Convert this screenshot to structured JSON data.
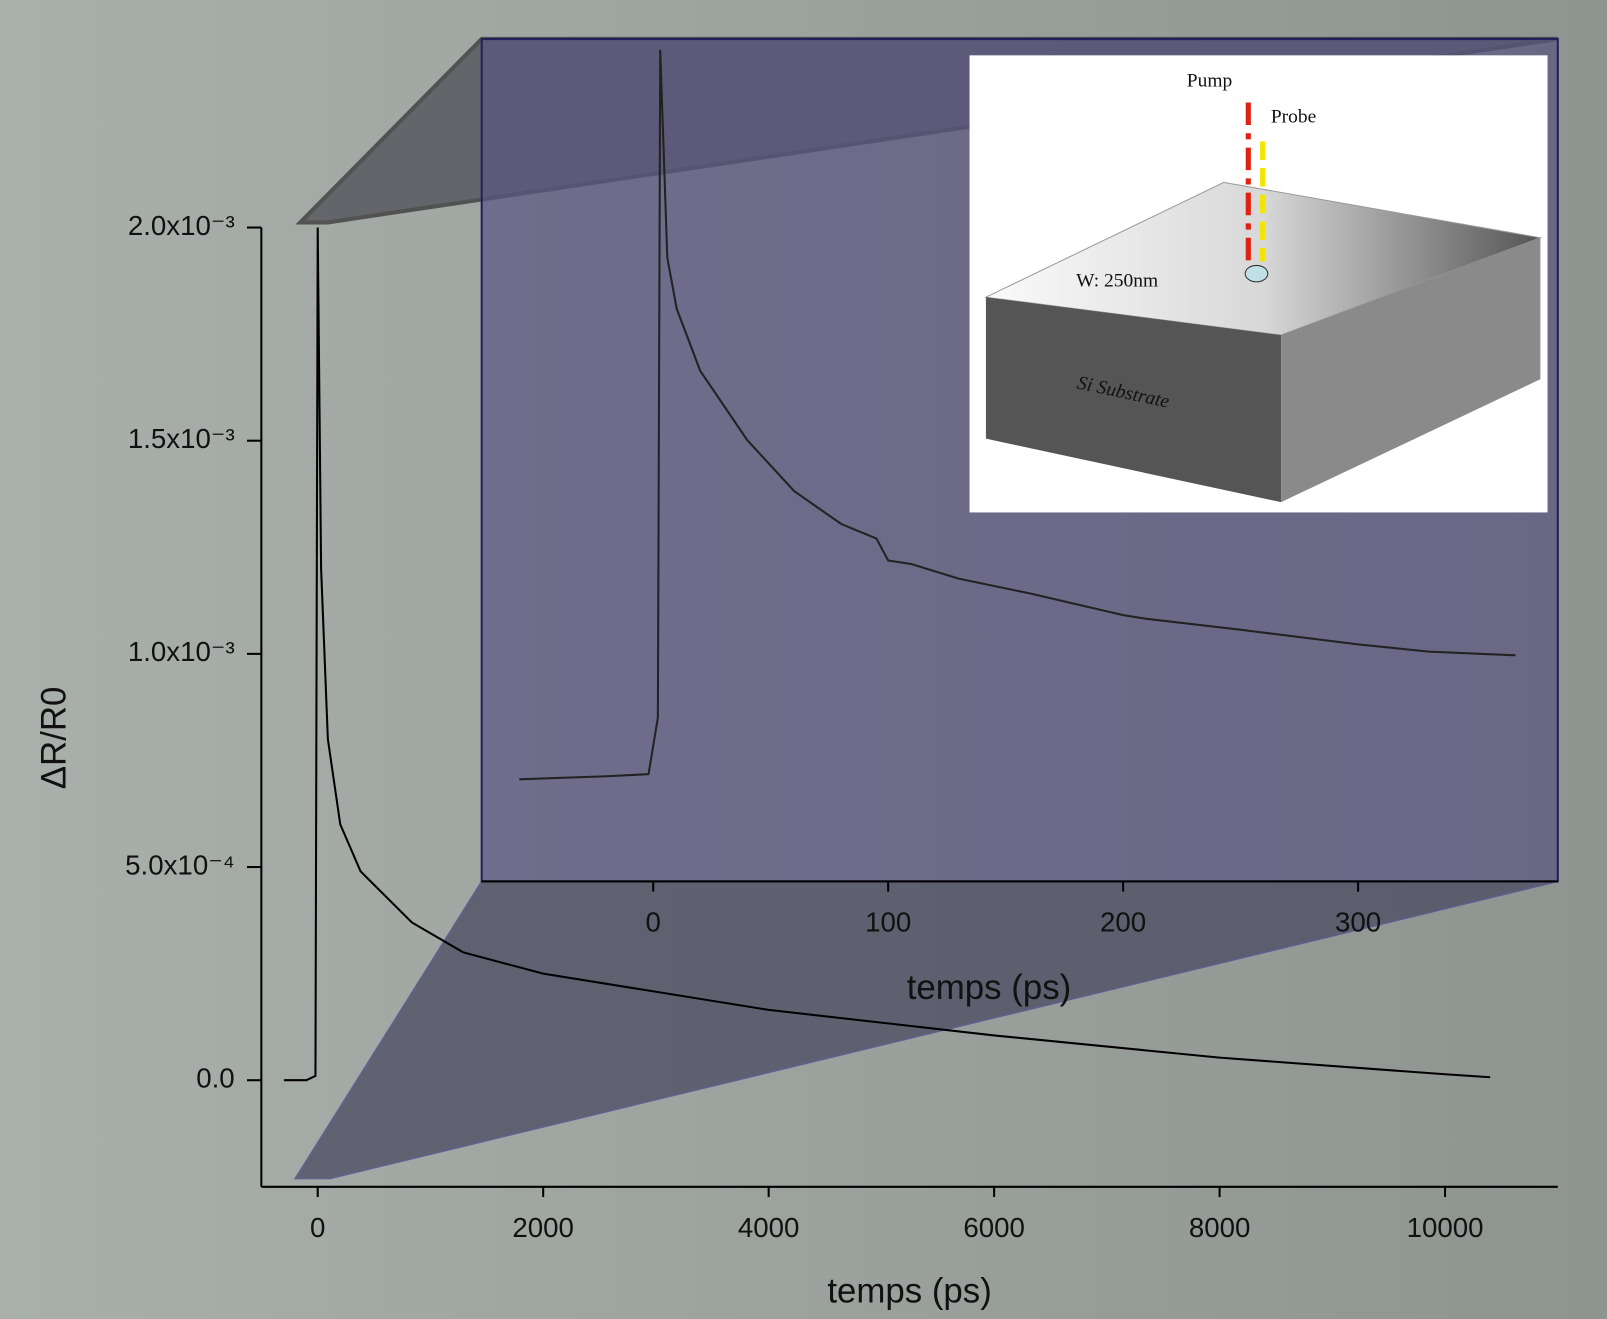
{
  "chart_data": [
    {
      "type": "line",
      "xlabel": "temps (ps)",
      "ylabel": "ΔR/R0",
      "xlim": [
        -500,
        11000
      ],
      "ylim": [
        -0.00025,
        0.002
      ],
      "xticks": [
        0,
        2000,
        4000,
        6000,
        8000,
        10000
      ],
      "yticks": [
        {
          "value": 0,
          "label": "0.0"
        },
        {
          "value": 0.0005,
          "label": "5.0x10⁻⁴"
        },
        {
          "value": 0.001,
          "label": "1.0x10⁻³"
        },
        {
          "value": 0.0015,
          "label": "1.5x10⁻³"
        },
        {
          "value": 0.002,
          "label": "2.0x10⁻³"
        }
      ],
      "series": [
        {
          "color": "#000000",
          "x": [
            -300,
            -100,
            -20,
            0,
            30,
            60,
            90,
            200,
            380,
            835,
            1290,
            2000,
            4000,
            6000,
            8000,
            10000,
            10400
          ],
          "values": [
            0,
            0,
            1e-05,
            0.002,
            0.0012,
            0.001,
            0.0008,
            0.0006,
            0.00049,
            0.00037,
            0.0003,
            0.00025,
            0.000165,
            0.000105,
            5.3e-05,
            1.4e-05,
            7e-06
          ]
        }
      ]
    },
    {
      "type": "line",
      "xlabel": "temps (ps)",
      "xlim": [
        -73,
        385
      ],
      "ylim": [
        -0.00028,
        0.00203
      ],
      "xticks": [
        0,
        100,
        200,
        300
      ],
      "series": [
        {
          "color": "#222222",
          "x": [
            -57,
            -20,
            -2,
            2,
            3,
            6,
            10,
            20,
            40,
            60,
            80,
            95,
            100,
            110,
            130,
            160,
            200,
            210,
            250,
            300,
            330,
            367
          ],
          "values": [
            0,
            8.4e-06,
            1.4e-05,
            0.000169,
            0.002,
            0.00143,
            0.00129,
            0.00112,
            0.00093,
            0.00079,
            0.0007,
            0.00066,
            0.0006,
            0.00059,
            0.00055,
            0.00051,
            0.00045,
            0.00044,
            0.00041,
            0.00037,
            0.00035,
            0.00034
          ]
        }
      ]
    }
  ],
  "inset_diagram": {
    "labels": [
      "Pump",
      "Probe",
      "W: 250nm",
      "Si Substrate"
    ]
  }
}
